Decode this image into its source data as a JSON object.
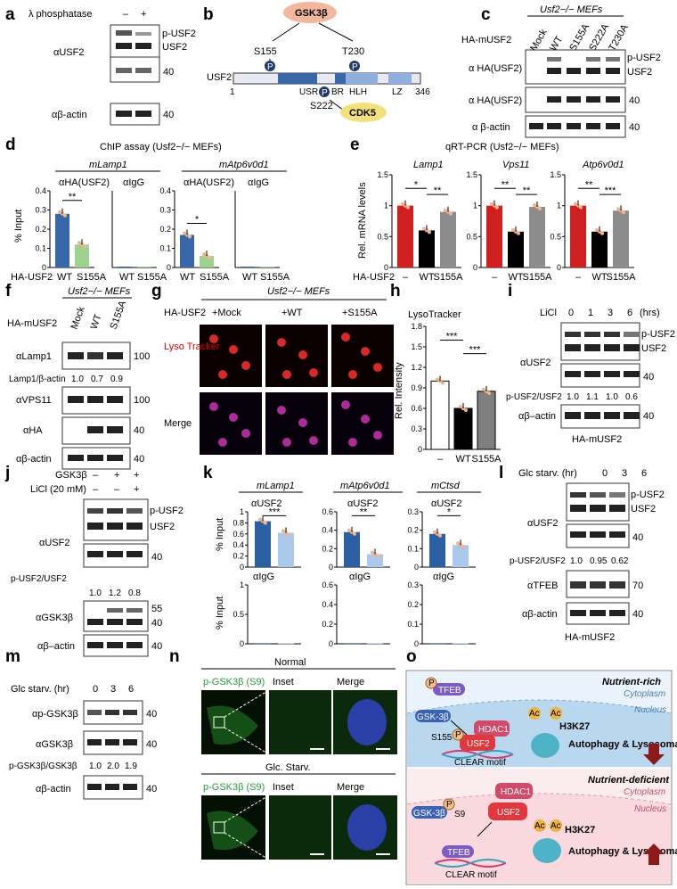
{
  "panel_labels": [
    "a",
    "b",
    "c",
    "d",
    "e",
    "f",
    "g",
    "h",
    "i",
    "j",
    "k",
    "l",
    "m",
    "n",
    "o"
  ],
  "a": {
    "header": "λ phosphatase",
    "lanes": [
      "–",
      "+"
    ],
    "antibody1": "αUSF2",
    "band_labels": [
      "p-USF2",
      "USF2"
    ],
    "mw1": "40",
    "antibody2": "αβ-actin",
    "mw2": "40"
  },
  "b": {
    "kinase1": "GSK3β",
    "kinase2": "CDK5",
    "protein": "USF2",
    "start": "1",
    "end": "346",
    "sites": [
      "S155",
      "T230",
      "S222"
    ],
    "phospho": "P",
    "domains": [
      "USR",
      "BR",
      "HLH",
      "LZ"
    ]
  },
  "c": {
    "title": "Usf2−/− MEFs",
    "row_label": "HA-mUSF2",
    "lanes": [
      "Mock",
      "WT",
      "S155A",
      "S222A",
      "T230A"
    ],
    "antibodies": [
      "α HA(USF2)",
      "α HA(USF2)",
      "α β-actin"
    ],
    "band_labels": [
      "p-USF2",
      "USF2"
    ],
    "mw": [
      "40",
      "40"
    ]
  },
  "d": {
    "title": "ChIP assay (Usf2−/− MEFs)",
    "genes": [
      "mLamp1",
      "mAtp6v0d1"
    ],
    "groups": [
      "αHA(USF2)",
      "αIgG"
    ],
    "ylabel": "% Input",
    "row_label": "HA-USF2",
    "xlabels": [
      "WT",
      "S155A"
    ],
    "sig": [
      "**",
      "*"
    ],
    "chart_data": {
      "type": "bar",
      "categories": [
        "WT",
        "S155A"
      ],
      "series": [
        {
          "name": "mLamp1 αHA(USF2)",
          "values": [
            0.28,
            0.12
          ]
        },
        {
          "name": "mLamp1 αIgG",
          "values": [
            0.005,
            0.005
          ]
        },
        {
          "name": "mAtp6v0d1 αHA(USF2)",
          "values": [
            0.17,
            0.06
          ]
        },
        {
          "name": "mAtp6v0d1 αIgG",
          "values": [
            0.005,
            0.005
          ]
        }
      ],
      "ylim": [
        0,
        0.4
      ],
      "yticks": [
        "0.4",
        "0.3",
        "0.2",
        "0.1",
        "0"
      ]
    }
  },
  "e": {
    "title": "qRT-PCR (Usf2−/− MEFs)",
    "genes": [
      "Lamp1",
      "Vps11",
      "Atp6v0d1"
    ],
    "ylabel": "Rel. mRNA levels",
    "row_label": "HA-USF2",
    "xlabels": [
      "–",
      "WT",
      "S155A"
    ],
    "sig": [
      [
        "*",
        "**"
      ],
      [
        "**",
        "**"
      ],
      [
        "**",
        "***"
      ]
    ],
    "chart_data": {
      "type": "bar",
      "categories": [
        "–",
        "WT",
        "S155A"
      ],
      "series": [
        {
          "name": "Lamp1",
          "values": [
            1.0,
            0.6,
            0.9
          ]
        },
        {
          "name": "Vps11",
          "values": [
            1.0,
            0.58,
            0.98
          ]
        },
        {
          "name": "Atp6v0d1",
          "values": [
            1.0,
            0.58,
            0.92
          ]
        }
      ],
      "ylim": [
        0,
        1.5
      ],
      "yticks": [
        "1.5",
        "1",
        "0.5",
        "0"
      ]
    }
  },
  "f": {
    "title": "Usf2−/− MEFs",
    "row_label": "HA-mUSF2",
    "lanes": [
      "Mock",
      "WT",
      "S155A"
    ],
    "antibodies": [
      "αLamp1",
      "αVPS11",
      "αHA",
      "αβ-actin"
    ],
    "ratio_label": "Lamp1/β-actin",
    "ratios": [
      "1.0",
      "0.7",
      "0.9"
    ],
    "mw": [
      "100",
      "100",
      "40",
      "40"
    ]
  },
  "g": {
    "title": "Usf2−/− MEFs",
    "row_label": "HA-USF2",
    "cols": [
      "+Mock",
      "+WT",
      "+S155A"
    ],
    "rows": [
      "Lyso Tracker",
      "Merge"
    ]
  },
  "h": {
    "title": "LysoTracker",
    "ylabel": "Rel. Intensity",
    "xlabels": [
      "–",
      "WT",
      "S155A"
    ],
    "sig": [
      "***",
      "***"
    ],
    "chart_data": {
      "type": "bar",
      "categories": [
        "–",
        "WT",
        "S155A"
      ],
      "values": [
        1.0,
        0.6,
        0.85
      ],
      "ylim": [
        0,
        1.8
      ],
      "yticks": [
        "1.8",
        "1.5",
        "1.2",
        "0.9",
        "0.6",
        "0.3",
        "0"
      ]
    }
  },
  "i": {
    "treatment": "LiCl",
    "times": [
      "0",
      "1",
      "3",
      "6"
    ],
    "unit": "(hrs)",
    "antibody1": "αUSF2",
    "band_labels": [
      "p-USF2",
      "USF2"
    ],
    "mw": [
      "40",
      "40"
    ],
    "ratio_label": "p-USF2/USF2",
    "ratios": [
      "1.0",
      "1.1",
      "1.0",
      "0.6"
    ],
    "antibody2": "αβ–actin",
    "footer": "HA-mUSF2"
  },
  "j": {
    "rows": [
      "GSK3β",
      "LiCl (20 mM)"
    ],
    "lane_marks": [
      [
        "–",
        "+",
        "+"
      ],
      [
        "–",
        "–",
        "+"
      ]
    ],
    "antibodies": [
      "αUSF2",
      "αGSK3β",
      "αβ–actin"
    ],
    "band_labels": [
      "p-USF2",
      "USF2"
    ],
    "ratio_label": "p-USF2/USF2",
    "ratios": [
      "1.0",
      "1.2",
      "0.8"
    ],
    "mw": [
      "40",
      "55",
      "40",
      "40"
    ]
  },
  "k": {
    "genes": [
      "mLamp1",
      "mAtp6v0d1",
      "mCtsd"
    ],
    "top_label": "αUSF2",
    "bottom_label": "αIgG",
    "ylabel": "% Input",
    "sig": [
      "***",
      "**",
      "*"
    ],
    "chart_data": {
      "type": "bar",
      "categories": [
        "Ctrl",
        "LiCl"
      ],
      "series": [
        {
          "name": "mLamp1 αUSF2",
          "values": [
            0.83,
            0.62
          ]
        },
        {
          "name": "mAtp6v0d1 αUSF2",
          "values": [
            0.38,
            0.14
          ]
        },
        {
          "name": "mCtsd αUSF2",
          "values": [
            0.18,
            0.12
          ]
        }
      ],
      "yranges": [
        [
          0,
          1
        ],
        [
          0,
          0.6
        ],
        [
          0,
          0.3
        ]
      ],
      "yticks": [
        [
          "1",
          "0.8",
          "0.6",
          "0.4",
          "0.2",
          "0"
        ],
        [
          "0.6",
          "0.4",
          "0.2",
          "0"
        ],
        [
          "0.3",
          "0.2",
          "0.1",
          "0"
        ]
      ],
      "igg_yticks": [
        [
          "1",
          "0.5",
          "0"
        ],
        [
          "0.6",
          "0.4",
          "0.2",
          "0"
        ],
        [
          "0.3",
          "0.2",
          "0.1",
          "0"
        ]
      ]
    }
  },
  "l": {
    "treatment": "Glc starv. (hr)",
    "times": [
      "0",
      "3",
      "6"
    ],
    "antibodies": [
      "αUSF2",
      "αTFEB",
      "αβ-actin"
    ],
    "band_labels": [
      "p-USF2",
      "USF2"
    ],
    "mw": [
      "40",
      "70",
      "40"
    ],
    "ratio_label": "p-USF2/USF2",
    "ratios": [
      "1.0",
      "0.95",
      "0.62"
    ],
    "footer": "HA-mUSF2"
  },
  "m": {
    "treatment": "Glc starv. (hr)",
    "times": [
      "0",
      "3",
      "6"
    ],
    "antibodies": [
      "αp-GSK3β",
      "αGSK3β",
      "αβ-actin"
    ],
    "ratio_label": "p-GSK3β/GSK3β",
    "ratios": [
      "1.0",
      "2.0",
      "1.9"
    ],
    "mw": [
      "40",
      "40",
      "40"
    ]
  },
  "n": {
    "conditions": [
      "Normal",
      "Glc. Starv."
    ],
    "stain": "p-GSK3β (S9)",
    "cols": [
      "Inset",
      "Merge"
    ]
  },
  "o": {
    "top_title": "Nutrient-rich",
    "bottom_title": "Nutrient-deficient",
    "cytoplasm": "Cytoplasm",
    "nucleus": "Nucleus",
    "proteins": [
      "TFEB",
      "GSK-3β",
      "HDAC1",
      "USF2"
    ],
    "phospho": "P",
    "site1": "S155",
    "site2": "S9",
    "acetyl": "Ac",
    "histone": "H3K27",
    "motif": "CLEAR motif",
    "genes": "Autophagy & Lysosomal genes"
  }
}
